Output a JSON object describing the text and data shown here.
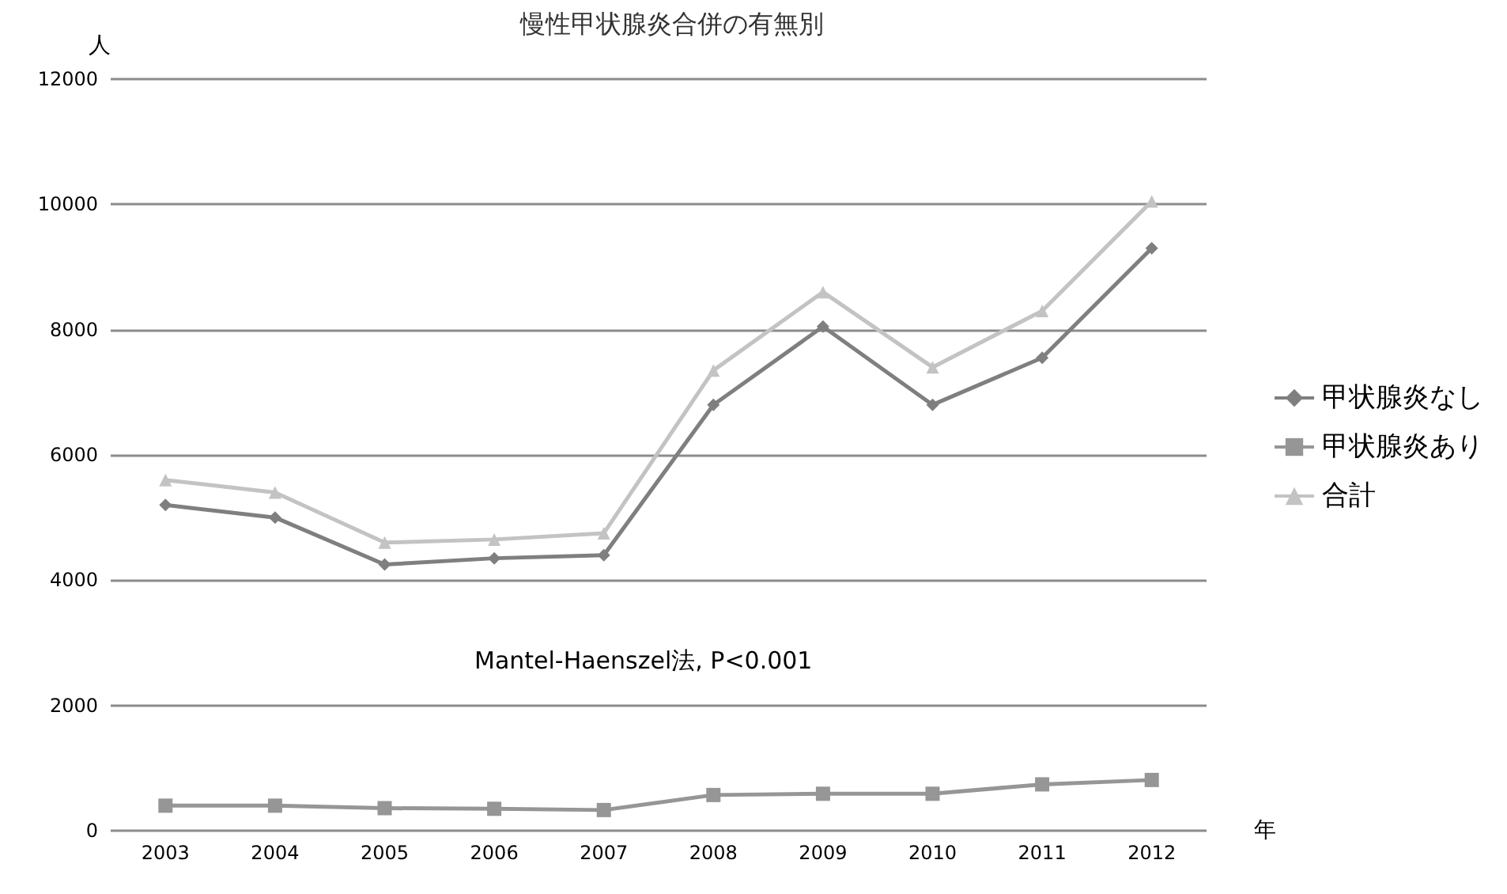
{
  "chart_data": {
    "type": "line",
    "title": "慢性甲状腺炎合併の有無別",
    "xlabel": "年",
    "ylabel": "人",
    "categories": [
      "2003",
      "2004",
      "2005",
      "2006",
      "2007",
      "2008",
      "2009",
      "2010",
      "2011",
      "2012"
    ],
    "series": [
      {
        "name": "甲状腺炎なし",
        "color": "#7f7f7f",
        "marker": "diamond",
        "values": [
          5200,
          5000,
          4250,
          4350,
          4400,
          6800,
          8050,
          6800,
          7550,
          9300
        ]
      },
      {
        "name": "甲状腺炎あり",
        "color": "#969696",
        "marker": "square",
        "values": [
          400,
          400,
          360,
          350,
          330,
          570,
          590,
          590,
          740,
          810
        ]
      },
      {
        "name": "合計",
        "color": "#c3c3c3",
        "marker": "triangle",
        "values": [
          5600,
          5400,
          4600,
          4650,
          4750,
          7350,
          8600,
          7400,
          8300,
          10050
        ]
      }
    ],
    "ylim": [
      0,
      12000
    ],
    "yticks": [
      0,
      2000,
      4000,
      6000,
      8000,
      10000,
      12000
    ],
    "grid": "y",
    "legend": "right",
    "annotations": [
      "Mantel-Haenszel法, P<0.001"
    ]
  }
}
